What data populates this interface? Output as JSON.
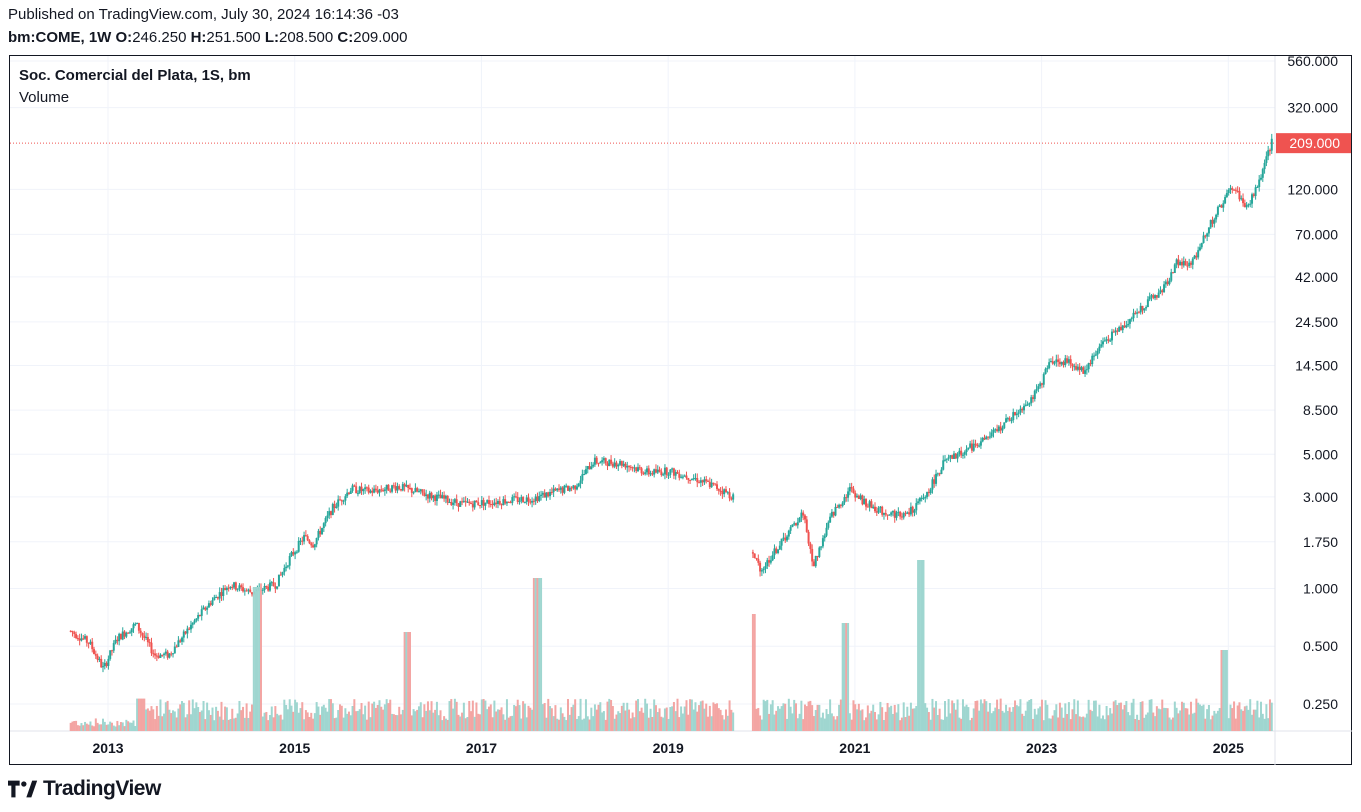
{
  "header": {
    "published": "Published on TradingView.com, July 30, 2024 16:14:36 -03",
    "symbol": "bm:COME, 1W",
    "open_label": "O:",
    "open_value": "246.250",
    "high_label": "H:",
    "high_value": "251.500",
    "low_label": "L:",
    "low_value": "208.500",
    "close_label": "C:",
    "close_value": "209.000"
  },
  "legend": {
    "title": "Soc. Comercial del Plata, 1S, bm",
    "volume": "Volume"
  },
  "brand": {
    "name": "TradingView"
  },
  "colors": {
    "up": "#26a69a",
    "down": "#ef5350",
    "vol_up": "#9fd6d0",
    "vol_down": "#f3a5a3",
    "grid": "#f0f3fa",
    "text": "#131722",
    "price_tag": "#ef5350"
  },
  "chart_data": {
    "type": "candlestick",
    "scale": "log",
    "ylim": [
      0.2,
      600
    ],
    "x_range": [
      2011.95,
      2025.5
    ],
    "y_ticks": [
      "560.000",
      "320.000",
      "120.000",
      "70.000",
      "42.000",
      "24.500",
      "14.500",
      "8.500",
      "5.000",
      "3.000",
      "1.750",
      "1.000",
      "0.500",
      "0.250"
    ],
    "x_ticks": [
      "2013",
      "2015",
      "2017",
      "2019",
      "2021",
      "2023",
      "2025"
    ],
    "last_price": "209.000",
    "grid": true,
    "price_path": [
      [
        2012.6,
        0.6
      ],
      [
        2012.8,
        0.52
      ],
      [
        2012.95,
        0.38
      ],
      [
        2013.1,
        0.55
      ],
      [
        2013.3,
        0.65
      ],
      [
        2013.5,
        0.45
      ],
      [
        2013.65,
        0.45
      ],
      [
        2013.9,
        0.65
      ],
      [
        2014.1,
        0.85
      ],
      [
        2014.3,
        1.05
      ],
      [
        2014.55,
        0.95
      ],
      [
        2014.8,
        1.05
      ],
      [
        2014.95,
        1.45
      ],
      [
        2015.1,
        1.85
      ],
      [
        2015.2,
        1.7
      ],
      [
        2015.4,
        2.6
      ],
      [
        2015.6,
        3.3
      ],
      [
        2015.8,
        3.2
      ],
      [
        2016.1,
        3.4
      ],
      [
        2016.5,
        3.0
      ],
      [
        2016.8,
        2.75
      ],
      [
        2017.2,
        2.85
      ],
      [
        2017.55,
        2.95
      ],
      [
        2017.8,
        3.2
      ],
      [
        2018.0,
        3.4
      ],
      [
        2018.2,
        4.6
      ],
      [
        2018.5,
        4.5
      ],
      [
        2018.8,
        4.0
      ],
      [
        2019.0,
        4.1
      ],
      [
        2019.25,
        3.8
      ],
      [
        2019.5,
        3.4
      ],
      [
        2019.7,
        3.0
      ],
      [
        2019.9,
        1.5
      ],
      [
        2020.0,
        1.25
      ],
      [
        2020.2,
        1.7
      ],
      [
        2020.45,
        2.5
      ],
      [
        2020.55,
        1.3
      ],
      [
        2020.75,
        2.4
      ],
      [
        2020.95,
        3.3
      ],
      [
        2021.1,
        2.8
      ],
      [
        2021.3,
        2.5
      ],
      [
        2021.55,
        2.4
      ],
      [
        2021.75,
        3.0
      ],
      [
        2021.95,
        4.5
      ],
      [
        2022.2,
        5.3
      ],
      [
        2022.45,
        6.2
      ],
      [
        2022.7,
        8.0
      ],
      [
        2022.95,
        10.5
      ],
      [
        2023.1,
        15.5
      ],
      [
        2023.3,
        15.0
      ],
      [
        2023.45,
        13.5
      ],
      [
        2023.65,
        19.0
      ],
      [
        2023.9,
        24.0
      ],
      [
        2024.1,
        30.0
      ],
      [
        2024.3,
        36.0
      ],
      [
        2024.45,
        50.0
      ],
      [
        2024.6,
        48.0
      ],
      [
        2024.75,
        70.0
      ],
      [
        2024.9,
        95.0
      ],
      [
        2025.05,
        125.0
      ],
      [
        2025.2,
        95.0
      ],
      [
        2025.35,
        140.0
      ],
      [
        2025.5,
        240.0
      ]
    ],
    "volume_peaks": [
      [
        2013.35,
        0.45
      ],
      [
        2014.6,
        0.8
      ],
      [
        2016.2,
        0.55
      ],
      [
        2017.6,
        0.85
      ],
      [
        2019.9,
        0.65
      ],
      [
        2020.9,
        0.6
      ],
      [
        2021.7,
        0.95
      ],
      [
        2024.95,
        0.45
      ]
    ]
  }
}
